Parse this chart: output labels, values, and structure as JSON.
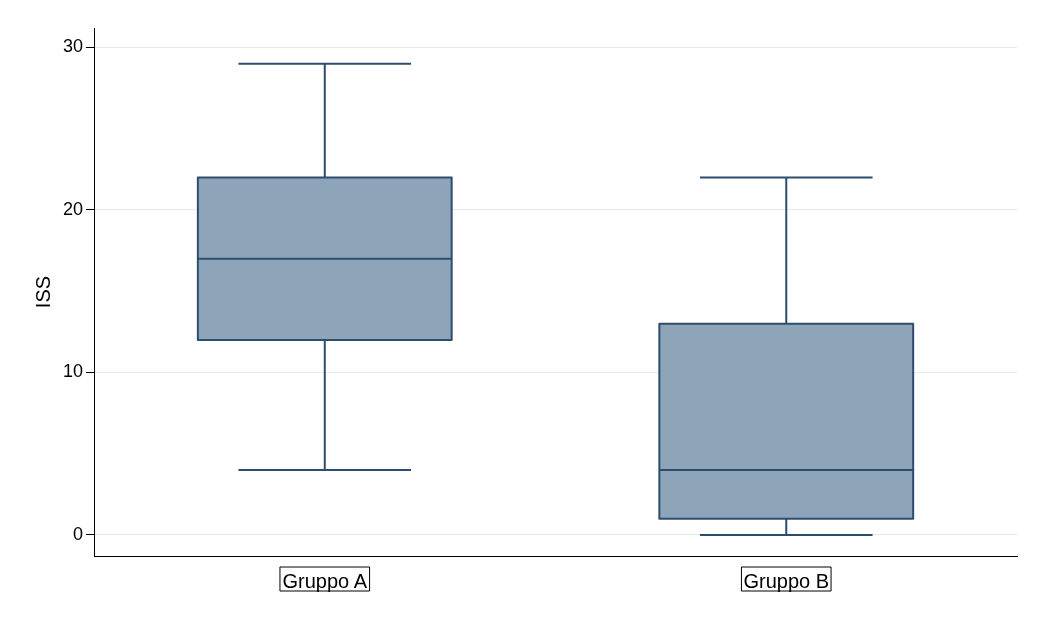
{
  "chart_data": {
    "type": "box",
    "ylabel": "ISS",
    "categories": [
      "Gruppo A",
      "Gruppo B"
    ],
    "boxes": [
      {
        "low": 4,
        "q1": 12,
        "median": 17,
        "q3": 22,
        "high": 29
      },
      {
        "low": 0,
        "q1": 1,
        "median": 4,
        "q3": 13,
        "high": 22
      }
    ],
    "color": "#8ea4b8",
    "ylim": [
      -1.3,
      31.2
    ],
    "yticks": [
      0,
      10,
      20,
      30
    ],
    "grid": "y",
    "legend": false
  }
}
